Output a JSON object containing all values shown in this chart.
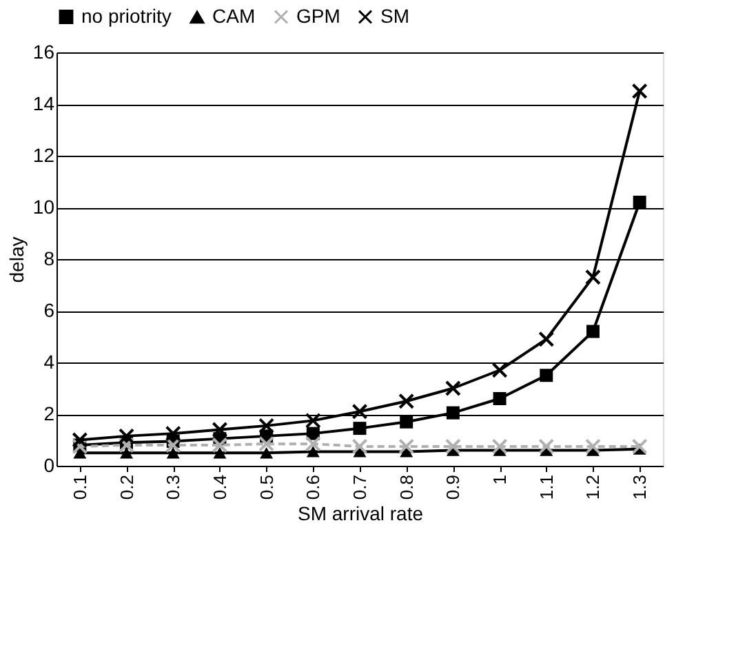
{
  "chart_data": {
    "type": "line",
    "xlabel": "SM arrival rate",
    "ylabel": "delay",
    "categories": [
      "0.1",
      "0.2",
      "0.3",
      "0.4",
      "0.5",
      "0.6",
      "0.7",
      "0.8",
      "0.9",
      "1",
      "1.1",
      "1.2",
      "1.3"
    ],
    "series": [
      {
        "name": "no priotrity",
        "color": "#000000",
        "marker": "square",
        "line_style": "solid",
        "values": [
          0.8,
          0.9,
          0.95,
          1.05,
          1.15,
          1.25,
          1.45,
          1.7,
          2.05,
          2.6,
          3.5,
          5.2,
          10.2
        ]
      },
      {
        "name": "CAM",
        "color": "#000000",
        "marker": "triangle",
        "line_style": "solid",
        "values": [
          0.5,
          0.5,
          0.5,
          0.5,
          0.5,
          0.55,
          0.55,
          0.55,
          0.6,
          0.6,
          0.6,
          0.6,
          0.65
        ]
      },
      {
        "name": "GPM",
        "color": "#b0b0b0",
        "marker": "cross",
        "line_style": "dashed",
        "values": [
          0.75,
          0.8,
          0.8,
          0.8,
          0.85,
          0.85,
          0.75,
          0.75,
          0.75,
          0.75,
          0.75,
          0.75,
          0.75
        ]
      },
      {
        "name": "SM",
        "color": "#000000",
        "marker": "cross",
        "line_style": "solid",
        "values": [
          1.0,
          1.15,
          1.25,
          1.4,
          1.55,
          1.75,
          2.1,
          2.5,
          3.0,
          3.7,
          4.9,
          7.3,
          14.5
        ]
      }
    ],
    "ylim": [
      0,
      16
    ],
    "yticks": [
      0,
      2,
      4,
      6,
      8,
      10,
      12,
      14,
      16
    ],
    "grid": "y",
    "legend": "top"
  }
}
